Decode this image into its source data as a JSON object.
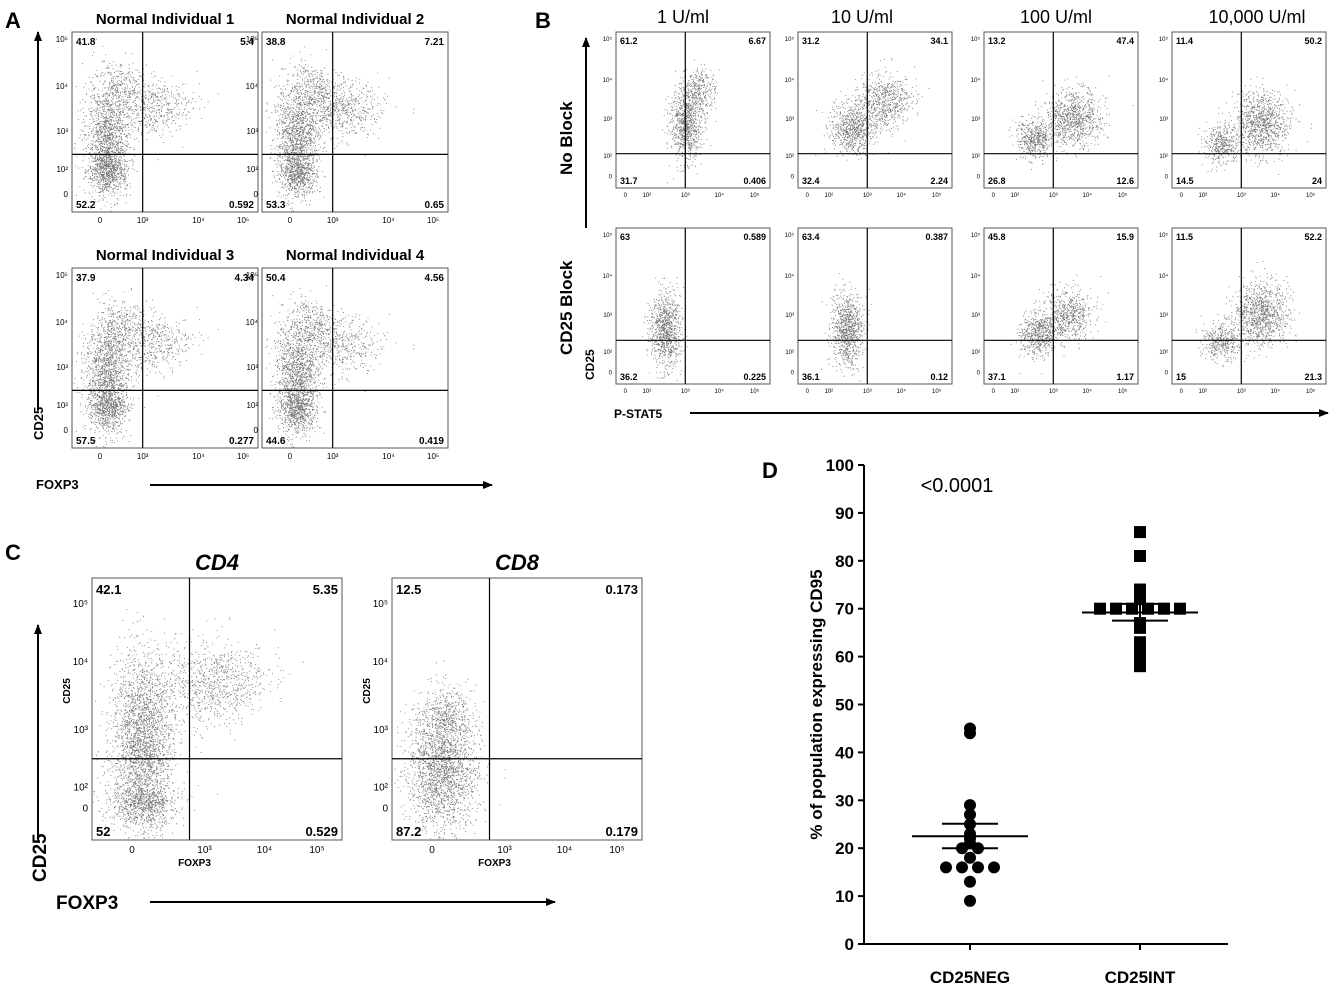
{
  "panel_letters": {
    "a": "A",
    "b": "B",
    "c": "C",
    "d": "D"
  },
  "panel_a": {
    "plots": [
      {
        "title": "Normal Individual 1",
        "q_ul": "41.8",
        "q_ur": "5.4",
        "q_ll": "52.2",
        "q_lr": "0.592"
      },
      {
        "title": "Normal Individual 2",
        "q_ul": "38.8",
        "q_ur": "7.21",
        "q_ll": "53.3",
        "q_lr": "0.65"
      },
      {
        "title": "Normal Individual 3",
        "q_ul": "37.9",
        "q_ur": "4.34",
        "q_ll": "57.5",
        "q_lr": "0.277"
      },
      {
        "title": "Normal Individual 4",
        "q_ul": "50.4",
        "q_ur": "4.56",
        "q_ll": "44.6",
        "q_lr": "0.419"
      }
    ],
    "y_axis_label": "CD25",
    "x_axis_label": "FOXP3"
  },
  "panel_b": {
    "columns": [
      "1 U/ml",
      "10 U/ml",
      "100 U/ml",
      "10,000 U/ml"
    ],
    "rows": [
      "No Block",
      "CD25 Block"
    ],
    "y_axis_label": "CD25",
    "x_axis_label": "P-STAT5",
    "plots": [
      [
        {
          "q_ul": "61.2",
          "q_ur": "6.67",
          "q_ll": "31.7",
          "q_lr": "0.406"
        },
        {
          "q_ul": "31.2",
          "q_ur": "34.1",
          "q_ll": "32.4",
          "q_lr": "2.24"
        },
        {
          "q_ul": "13.2",
          "q_ur": "47.4",
          "q_ll": "26.8",
          "q_lr": "12.6"
        },
        {
          "q_ul": "11.4",
          "q_ur": "50.2",
          "q_ll": "14.5",
          "q_lr": "24"
        }
      ],
      [
        {
          "q_ul": "63",
          "q_ur": "0.589",
          "q_ll": "36.2",
          "q_lr": "0.225"
        },
        {
          "q_ul": "63.4",
          "q_ur": "0.387",
          "q_ll": "36.1",
          "q_lr": "0.12"
        },
        {
          "q_ul": "45.8",
          "q_ur": "15.9",
          "q_ll": "37.1",
          "q_lr": "1.17"
        },
        {
          "q_ul": "11.5",
          "q_ur": "52.2",
          "q_ll": "15",
          "q_lr": "21.3"
        }
      ]
    ]
  },
  "panel_c": {
    "plots": [
      {
        "title": "CD4",
        "q_ul": "42.1",
        "q_ur": "5.35",
        "q_ll": "52",
        "q_lr": "0.529"
      },
      {
        "title": "CD8",
        "q_ul": "12.5",
        "q_ur": "0.173",
        "q_ll": "87.2",
        "q_lr": "0.179"
      }
    ],
    "inner_y_label": "CD25",
    "inner_x_label": "FOXP3",
    "y_axis_label": "CD25",
    "x_axis_label": "FOXP3"
  },
  "flow_ticks": {
    "x": [
      "0",
      "10³",
      "10⁴",
      "10⁵"
    ],
    "y": [
      "10⁵",
      "10⁴",
      "10³",
      "10²",
      "0"
    ],
    "x_b": [
      "0",
      "10²",
      "10³",
      "10⁴",
      "10⁵"
    ],
    "y_b": [
      "10⁵",
      "10⁴",
      "10³",
      "10²",
      "0"
    ]
  },
  "chart_data": {
    "type": "scatter",
    "title": "",
    "xlabel": "",
    "ylabel": "% of population expressing CD95",
    "ylim": [
      0,
      100
    ],
    "yticks": [
      0,
      10,
      20,
      30,
      40,
      50,
      60,
      70,
      80,
      90,
      100
    ],
    "categories": [
      "CD25NEG",
      "CD25INT"
    ],
    "annotation": "<0.0001",
    "series": [
      {
        "category": "CD25NEG",
        "marker": "circle",
        "mean": 22.5,
        "sem_low": 20.0,
        "sem_high": 25.1,
        "values": [
          45,
          44,
          29,
          27,
          25,
          23,
          22,
          21,
          20,
          20,
          18,
          16,
          16,
          16,
          16,
          13,
          9
        ]
      },
      {
        "category": "CD25INT",
        "marker": "square",
        "mean": 69.2,
        "sem_low": 67.5,
        "sem_high": 71.0,
        "values": [
          86,
          81,
          74,
          72,
          70,
          70,
          70,
          70,
          70,
          70,
          67,
          66,
          63,
          62,
          60,
          58
        ]
      }
    ]
  }
}
